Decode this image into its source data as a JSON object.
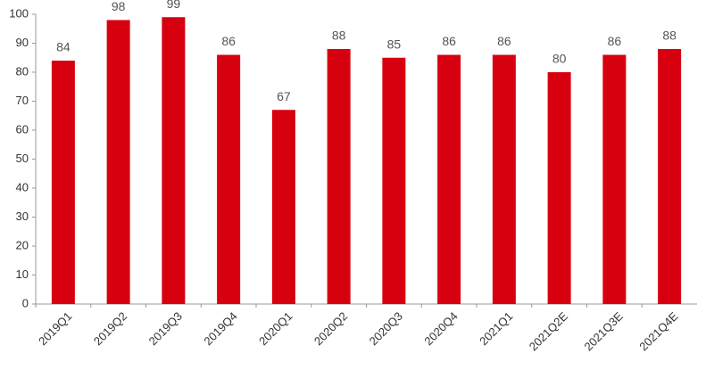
{
  "chart_data": {
    "type": "bar",
    "categories": [
      "2019Q1",
      "2019Q2",
      "2019Q3",
      "2019Q4",
      "2020Q1",
      "2020Q2",
      "2020Q3",
      "2020Q4",
      "2021Q1",
      "2021Q2E",
      "2021Q3E",
      "2021Q4E"
    ],
    "values": [
      84,
      98,
      99,
      86,
      67,
      88,
      85,
      86,
      86,
      80,
      86,
      88
    ],
    "color": "#d7000f",
    "ylim": [
      0,
      100
    ],
    "yticks": [
      0,
      10,
      20,
      30,
      40,
      50,
      60,
      70,
      80,
      90,
      100
    ],
    "grid": false
  }
}
